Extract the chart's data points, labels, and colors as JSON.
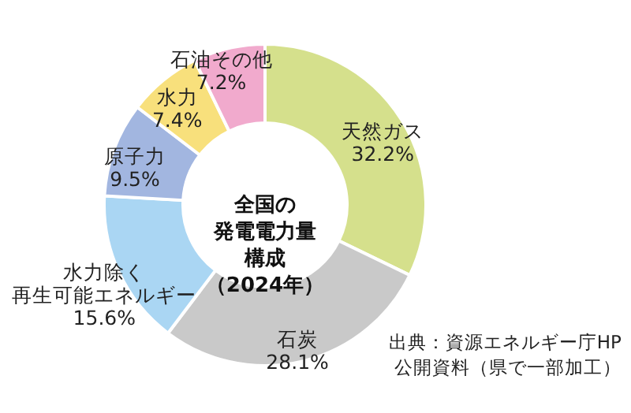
{
  "chart_data": {
    "type": "donut",
    "title": "全国の発電電力量構成（2024年）",
    "categories": [
      "天然ガス",
      "石炭",
      "水力除く再生可能エネルギー",
      "原子力",
      "水力",
      "石油その他"
    ],
    "values": [
      32.2,
      28.1,
      15.6,
      9.5,
      7.4,
      7.2
    ],
    "value_labels": [
      "32.2%",
      "28.1%",
      "15.6%",
      "9.5%",
      "7.4%",
      "7.2%"
    ],
    "colors": [
      "#d5e08c",
      "#c9c9c9",
      "#aad6f3",
      "#a2b6e0",
      "#f8e07c",
      "#f1aacd"
    ],
    "annotations": [
      "出典：資源エネルギー庁HP公開資料（県で一部加工）"
    ]
  }
}
